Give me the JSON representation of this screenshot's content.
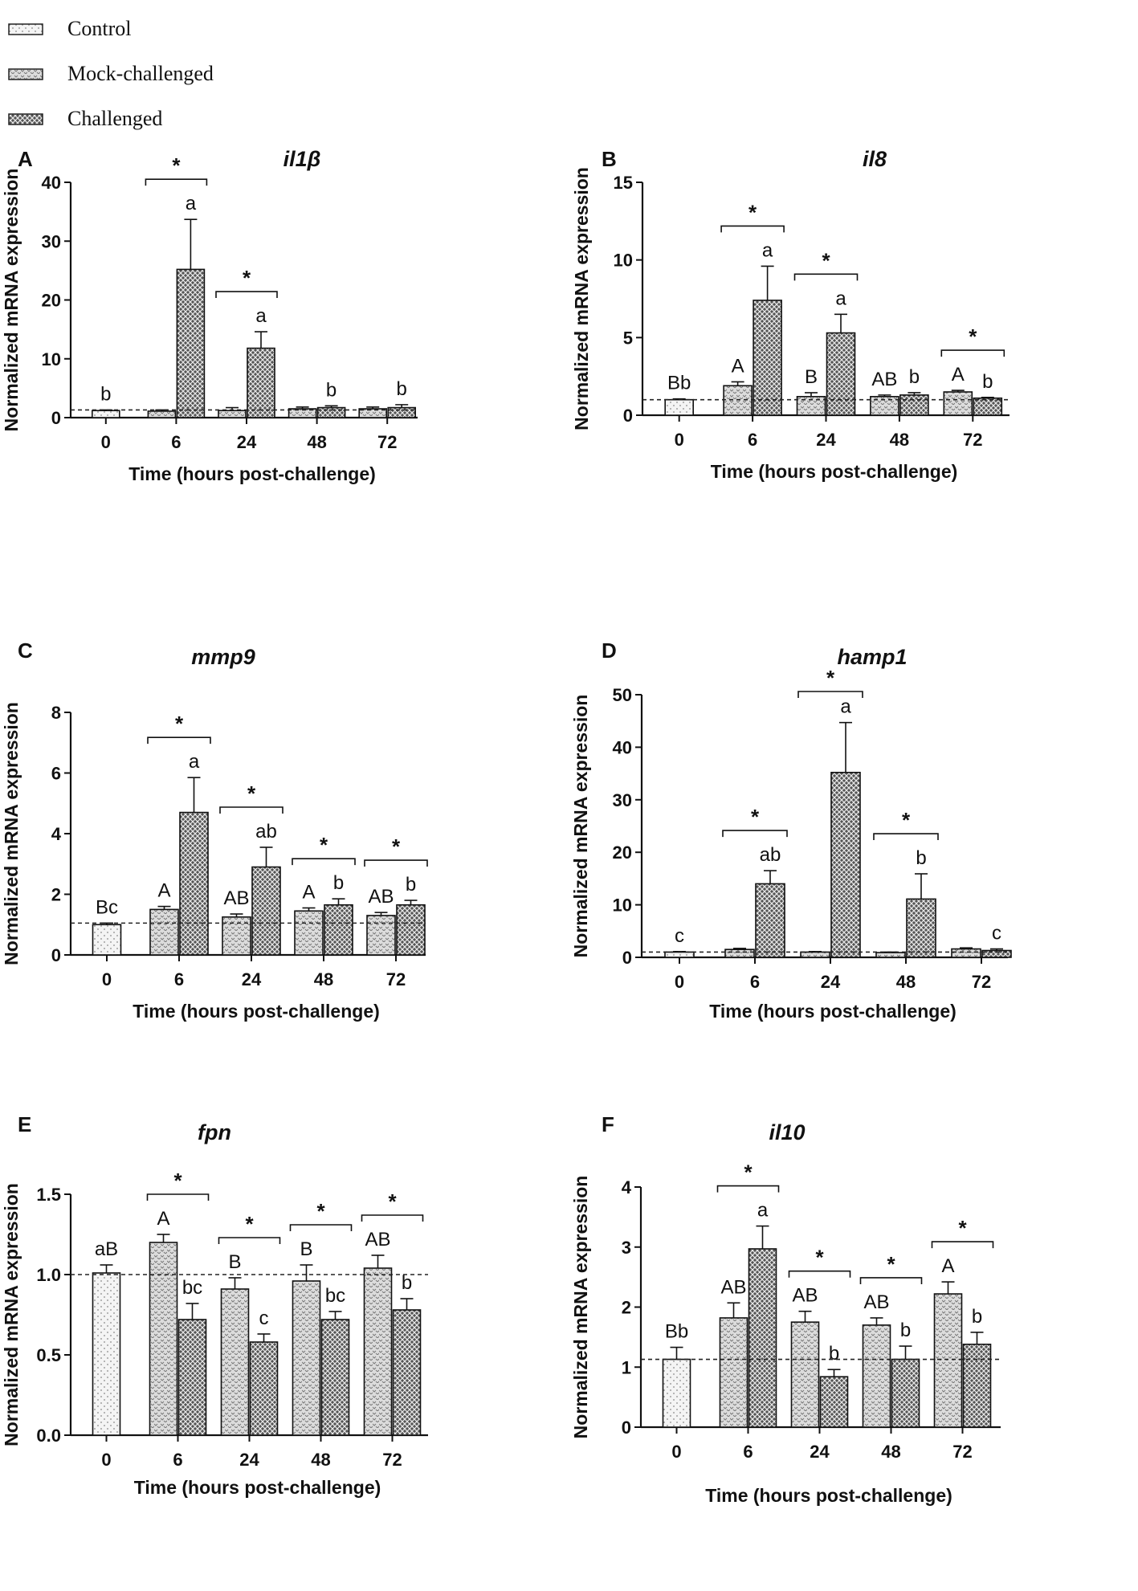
{
  "legend": [
    {
      "label": "Control",
      "pattern": "control"
    },
    {
      "label": "Mock-challenged",
      "pattern": "mock"
    },
    {
      "label": "Challenged",
      "pattern": "challenged"
    }
  ],
  "colors": {
    "ink": "#111111",
    "control_fill": "#f4f4f4",
    "mock_fill": "#d6d6d6",
    "challenged_fill": "#4a4a4a"
  },
  "chart_data": [
    {
      "panel": "A",
      "title": "il1β",
      "type": "bar",
      "categories": [
        "0",
        "6",
        "24",
        "48",
        "72"
      ],
      "xlabel": "Time (hours post-challenge)",
      "ylabel": "Normalized mRNA expression",
      "ylim": [
        0,
        40
      ],
      "yticks": [
        0,
        10,
        20,
        30,
        40
      ],
      "ytick_labels": [
        "0",
        "10",
        "20",
        "30",
        "40"
      ],
      "reference_line": 1.3,
      "series": [
        {
          "name": "Control",
          "values": [
            1.2,
            null,
            null,
            null,
            null
          ],
          "errors": [
            0.1,
            null,
            null,
            null,
            null
          ]
        },
        {
          "name": "Mock-challenged",
          "values": [
            null,
            1.1,
            1.2,
            1.5,
            1.5
          ],
          "errors": [
            null,
            0.2,
            0.5,
            0.3,
            0.3
          ]
        },
        {
          "name": "Challenged",
          "values": [
            null,
            25.2,
            11.8,
            1.7,
            1.7
          ],
          "errors": [
            null,
            8.5,
            2.8,
            0.3,
            0.5
          ]
        }
      ],
      "letters": [
        [
          "b",
          null,
          null
        ],
        [
          null,
          "",
          "a"
        ],
        [
          null,
          "",
          "a"
        ],
        [
          null,
          "",
          "b"
        ],
        [
          null,
          "",
          "b"
        ]
      ],
      "significance": [
        "",
        "*",
        "*",
        "",
        ""
      ]
    },
    {
      "panel": "B",
      "title": "il8",
      "type": "bar",
      "categories": [
        "0",
        "6",
        "24",
        "48",
        "72"
      ],
      "xlabel": "Time (hours post-challenge)",
      "ylabel": "Normalized mRNA expression",
      "ylim": [
        0,
        15
      ],
      "yticks": [
        0,
        5,
        10,
        15
      ],
      "ytick_labels": [
        "0",
        "5",
        "10",
        "15"
      ],
      "reference_line": 1.0,
      "series": [
        {
          "name": "Control",
          "values": [
            1.0,
            null,
            null,
            null,
            null
          ],
          "errors": [
            0.05,
            null,
            null,
            null,
            null
          ]
        },
        {
          "name": "Mock-challenged",
          "values": [
            null,
            1.9,
            1.2,
            1.2,
            1.5
          ],
          "errors": [
            null,
            0.25,
            0.25,
            0.1,
            0.1
          ]
        },
        {
          "name": "Challenged",
          "values": [
            null,
            7.4,
            5.3,
            1.3,
            1.1
          ],
          "errors": [
            null,
            2.2,
            1.2,
            0.15,
            0.05
          ]
        }
      ],
      "letters": [
        [
          "Bb",
          null,
          null
        ],
        [
          null,
          "A",
          "a"
        ],
        [
          null,
          "B",
          "a"
        ],
        [
          null,
          "AB",
          "b"
        ],
        [
          null,
          "A",
          "b"
        ]
      ],
      "significance": [
        "",
        "*",
        "*",
        "",
        "*"
      ]
    },
    {
      "panel": "C",
      "title": "mmp9",
      "type": "bar",
      "categories": [
        "0",
        "6",
        "24",
        "48",
        "72"
      ],
      "xlabel": "Time (hours post-challenge)",
      "ylabel": "Normalized mRNA expression",
      "ylim": [
        0,
        8
      ],
      "yticks": [
        0,
        2,
        4,
        6,
        8
      ],
      "ytick_labels": [
        "0",
        "2",
        "4",
        "6",
        "8"
      ],
      "reference_line": 1.05,
      "series": [
        {
          "name": "Control",
          "values": [
            1.0,
            null,
            null,
            null,
            null
          ],
          "errors": [
            0.05,
            null,
            null,
            null,
            null
          ]
        },
        {
          "name": "Mock-challenged",
          "values": [
            null,
            1.5,
            1.25,
            1.45,
            1.3
          ],
          "errors": [
            null,
            0.1,
            0.1,
            0.1,
            0.1
          ]
        },
        {
          "name": "Challenged",
          "values": [
            null,
            4.7,
            2.9,
            1.65,
            1.65
          ],
          "errors": [
            null,
            1.15,
            0.65,
            0.2,
            0.15
          ]
        }
      ],
      "letters": [
        [
          "Bc",
          null,
          null
        ],
        [
          null,
          "A",
          "a"
        ],
        [
          null,
          "AB",
          "ab"
        ],
        [
          null,
          "A",
          "b"
        ],
        [
          null,
          "AB",
          "b"
        ]
      ],
      "significance": [
        "",
        "*",
        "*",
        "*",
        "*"
      ]
    },
    {
      "panel": "D",
      "title": "hamp1",
      "type": "bar",
      "categories": [
        "0",
        "6",
        "24",
        "48",
        "72"
      ],
      "xlabel": "Time (hours post-challenge)",
      "ylabel": "Normalized mRNA expression",
      "ylim": [
        0,
        50
      ],
      "yticks": [
        0,
        10,
        20,
        30,
        40,
        50
      ],
      "ytick_labels": [
        "0",
        "10",
        "20",
        "30",
        "40",
        "50"
      ],
      "reference_line": 1.0,
      "series": [
        {
          "name": "Control",
          "values": [
            1.0,
            null,
            null,
            null,
            null
          ],
          "errors": [
            0.1,
            null,
            null,
            null,
            null
          ]
        },
        {
          "name": "Mock-challenged",
          "values": [
            null,
            1.5,
            1.0,
            0.9,
            1.6
          ],
          "errors": [
            null,
            0.2,
            0.1,
            0.1,
            0.2
          ]
        },
        {
          "name": "Challenged",
          "values": [
            null,
            14.0,
            35.2,
            11.1,
            1.3
          ],
          "errors": [
            null,
            2.5,
            9.5,
            4.8,
            0.3
          ]
        }
      ],
      "letters": [
        [
          "c",
          null,
          null
        ],
        [
          null,
          "",
          "ab"
        ],
        [
          null,
          "",
          "a"
        ],
        [
          null,
          "",
          "b"
        ],
        [
          null,
          "",
          "c"
        ]
      ],
      "significance": [
        "",
        "*",
        "*",
        "*",
        ""
      ]
    },
    {
      "panel": "E",
      "title": "fpn",
      "type": "bar",
      "categories": [
        "0",
        "6",
        "24",
        "48",
        "72"
      ],
      "xlabel": "Time (hours post-challenge)",
      "ylabel": "Normalized mRNA expression",
      "ylim": [
        0,
        1.5
      ],
      "yticks": [
        0,
        0.5,
        1.0,
        1.5
      ],
      "ytick_labels": [
        "0.0",
        "0.5",
        "1.0",
        "1.5"
      ],
      "reference_line": 1.0,
      "series": [
        {
          "name": "Control",
          "values": [
            1.01,
            null,
            null,
            null,
            null
          ],
          "errors": [
            0.05,
            null,
            null,
            null,
            null
          ]
        },
        {
          "name": "Mock-challenged",
          "values": [
            null,
            1.2,
            0.91,
            0.96,
            1.04
          ],
          "errors": [
            null,
            0.05,
            0.07,
            0.1,
            0.08
          ]
        },
        {
          "name": "Challenged",
          "values": [
            null,
            0.72,
            0.58,
            0.72,
            0.78
          ],
          "errors": [
            null,
            0.1,
            0.05,
            0.05,
            0.07
          ]
        }
      ],
      "letters": [
        [
          "aB",
          null,
          null
        ],
        [
          null,
          "A",
          "bc"
        ],
        [
          null,
          "B",
          "c"
        ],
        [
          null,
          "B",
          "bc"
        ],
        [
          null,
          "AB",
          "b"
        ]
      ],
      "significance": [
        "",
        "*",
        "*",
        "*",
        "*"
      ]
    },
    {
      "panel": "F",
      "title": "il10",
      "type": "bar",
      "categories": [
        "0",
        "6",
        "24",
        "48",
        "72"
      ],
      "xlabel": "Time (hours post-challenge)",
      "ylabel": "Normalized mRNA expression",
      "ylim": [
        0,
        4
      ],
      "yticks": [
        0,
        1,
        2,
        3,
        4
      ],
      "ytick_labels": [
        "0",
        "1",
        "2",
        "3",
        "4"
      ],
      "reference_line": 1.13,
      "series": [
        {
          "name": "Control",
          "values": [
            1.13,
            null,
            null,
            null,
            null
          ],
          "errors": [
            0.2,
            null,
            null,
            null,
            null
          ]
        },
        {
          "name": "Mock-challenged",
          "values": [
            null,
            1.82,
            1.75,
            1.7,
            2.22
          ],
          "errors": [
            null,
            0.25,
            0.18,
            0.12,
            0.2
          ]
        },
        {
          "name": "Challenged",
          "values": [
            null,
            2.97,
            0.84,
            1.13,
            1.38
          ],
          "errors": [
            null,
            0.38,
            0.12,
            0.22,
            0.2
          ]
        }
      ],
      "letters": [
        [
          "Bb",
          null,
          null
        ],
        [
          null,
          "AB",
          "a"
        ],
        [
          null,
          "AB",
          "b"
        ],
        [
          null,
          "AB",
          "b"
        ],
        [
          null,
          "A",
          "b"
        ]
      ],
      "significance": [
        "",
        "*",
        "*",
        "*",
        "*"
      ]
    }
  ]
}
